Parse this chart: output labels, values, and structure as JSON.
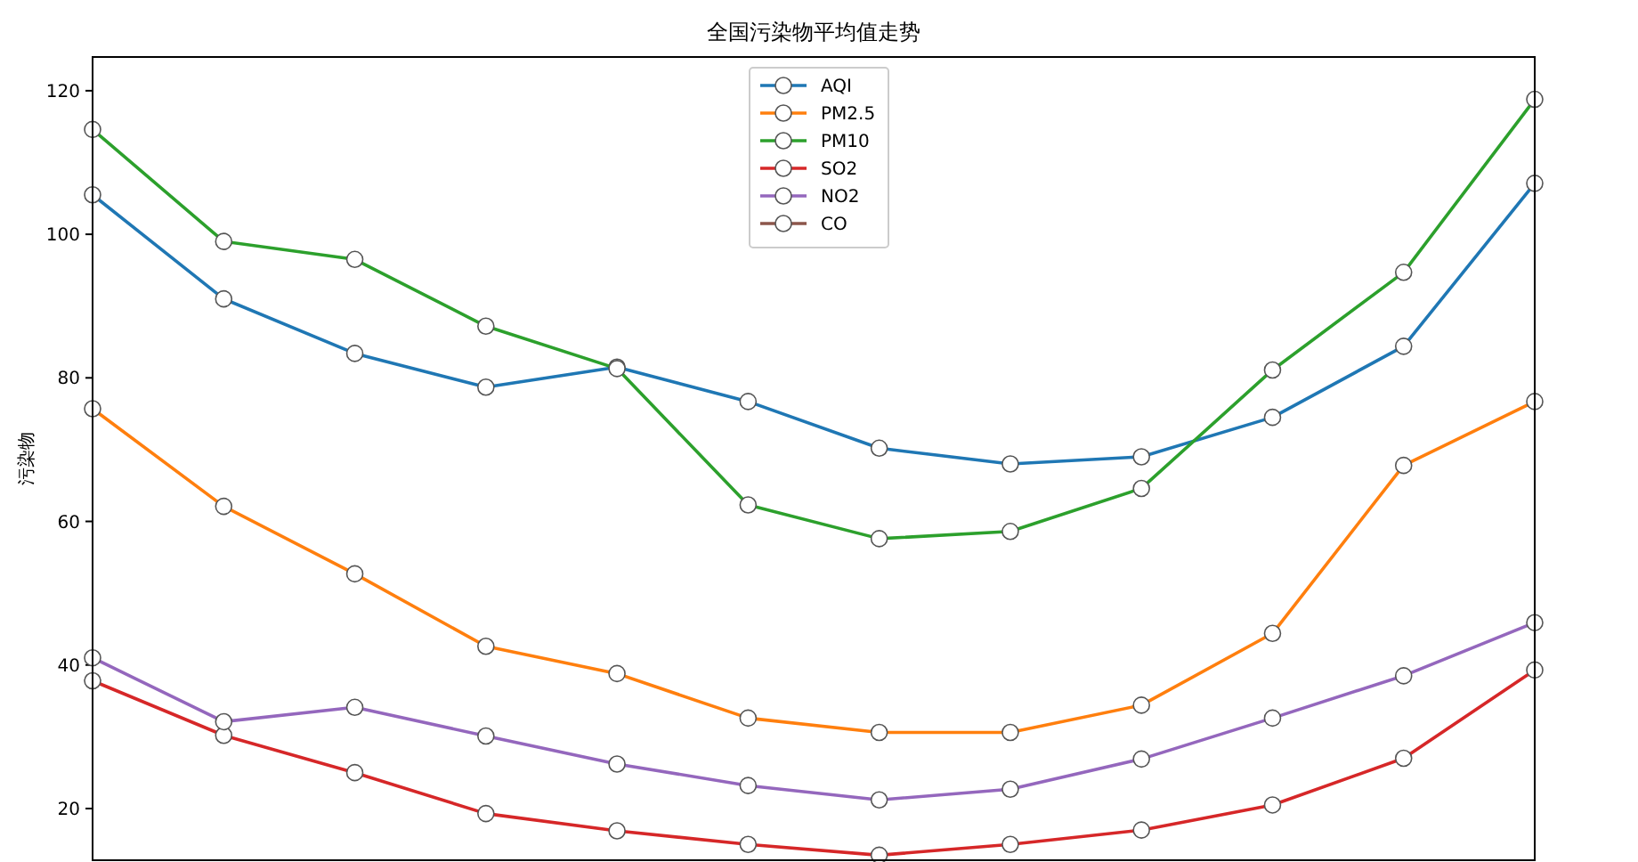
{
  "chart_data": {
    "type": "line",
    "title": "全国污染物平均值走势",
    "ylabel": "污染物",
    "categories": [
      null,
      null,
      null,
      null,
      null,
      null,
      null,
      null,
      null,
      null,
      null,
      null
    ],
    "ylim": [
      12.8,
      124.7
    ],
    "yticks": [
      20,
      40,
      60,
      80,
      100,
      120
    ],
    "grid": false,
    "legend": "top",
    "marker": "circle",
    "line_style": "solid",
    "tick_labels": "y",
    "series": [
      {
        "name": "AQI",
        "color": "#1f77b4",
        "values": [
          105.5,
          91,
          83.4,
          78.7,
          81.5,
          76.7,
          70.2,
          68,
          69,
          74.5,
          84.4,
          107.1
        ]
      },
      {
        "name": "PM2.5",
        "color": "#ff7f0e",
        "values": [
          75.7,
          62.1,
          52.7,
          42.6,
          38.8,
          32.6,
          30.6,
          30.6,
          34.4,
          44.4,
          67.8,
          76.7
        ]
      },
      {
        "name": "PM10",
        "color": "#2ca02c",
        "values": [
          114.6,
          99,
          96.5,
          87.2,
          81.3,
          62.3,
          57.6,
          58.6,
          64.6,
          81.1,
          94.7,
          118.8
        ]
      },
      {
        "name": "SO2",
        "color": "#d62728",
        "values": [
          37.8,
          30.2,
          25,
          19.3,
          16.9,
          15,
          13.5,
          15,
          17,
          20.5,
          27,
          39.3
        ]
      },
      {
        "name": "NO2",
        "color": "#9467bd",
        "values": [
          41,
          32.1,
          34.1,
          30.1,
          26.2,
          23.2,
          21.2,
          22.7,
          26.9,
          32.6,
          38.5,
          45.9
        ]
      },
      {
        "name": "CO",
        "color": "#8c564b",
        "values": [
          null,
          null,
          null,
          null,
          null,
          null,
          null,
          null,
          null,
          null,
          null,
          null
        ]
      }
    ]
  }
}
